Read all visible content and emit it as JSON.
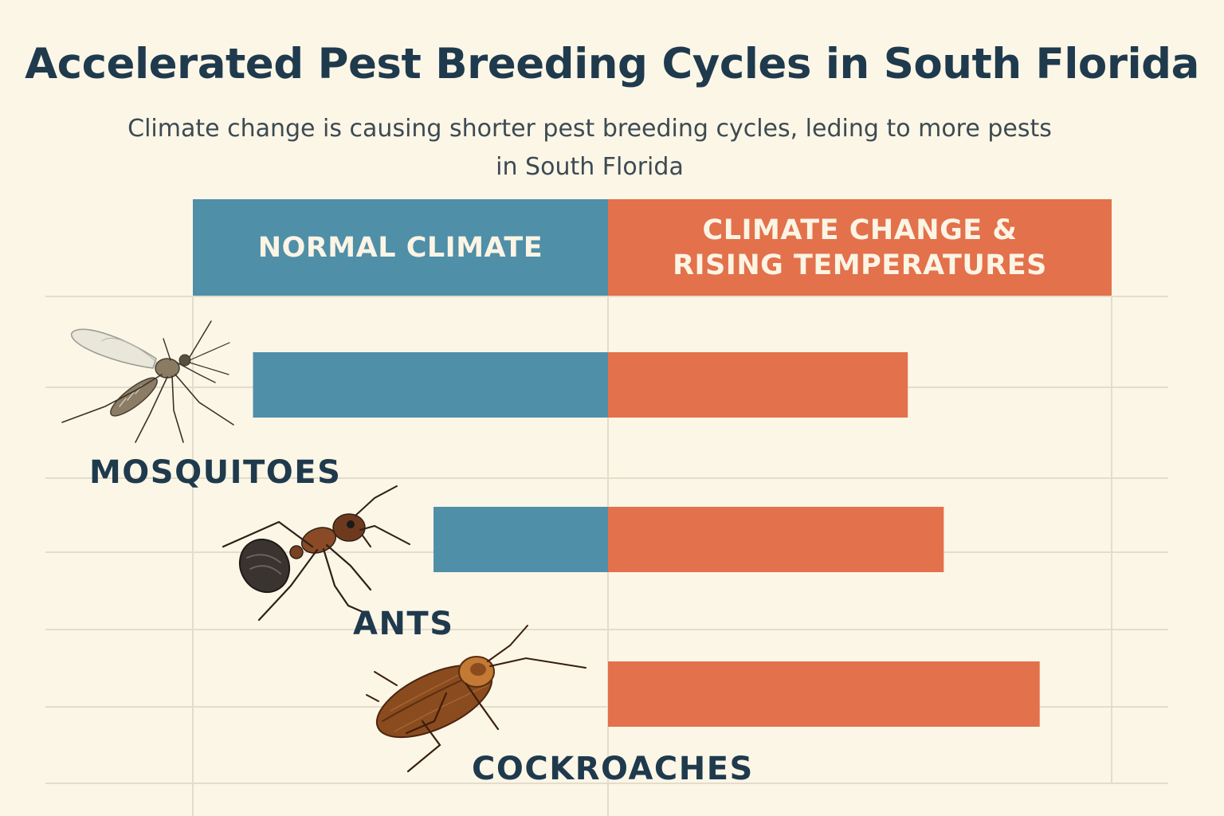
{
  "colors": {
    "background": "#fcf6e7",
    "normal": "#4f8fa8",
    "climate": "#e3714b",
    "text_dark": "#1f3a4d",
    "grid": "#e4ddcc"
  },
  "title": "Accelerated Pest Breeding Cycles in South Florida",
  "subtitle": "Climate change is causing shorter pest breeding cycles, leding to more pests in South Florida",
  "chart_data": {
    "type": "bar",
    "orientation": "horizontal-diverging",
    "title": "Accelerated Pest Breeding Cycles in South Florida",
    "subtitle": "Climate change is causing shorter pest breeding cycles, leding to more pests in South Florida",
    "columns": [
      "NORMAL CLIMATE",
      "CLIMATE CHANGE &\nRISING TEMPERATURES"
    ],
    "categories": [
      "MOSQUITOES",
      "ANTS",
      "COCKROACHES"
    ],
    "series": [
      {
        "name": "NORMAL CLIMATE",
        "direction": "left",
        "values": [
          5.9,
          2.9,
          0
        ]
      },
      {
        "name": "CLIMATE CHANGE & RISING TEMPERATURES",
        "direction": "right",
        "values": [
          5.0,
          5.6,
          7.2
        ]
      }
    ],
    "scale": {
      "left_max": 6.9,
      "right_max": 8.4
    },
    "xlabel": "",
    "ylabel": "",
    "icons": [
      "mosquito-icon",
      "ant-icon",
      "cockroach-icon"
    ]
  }
}
